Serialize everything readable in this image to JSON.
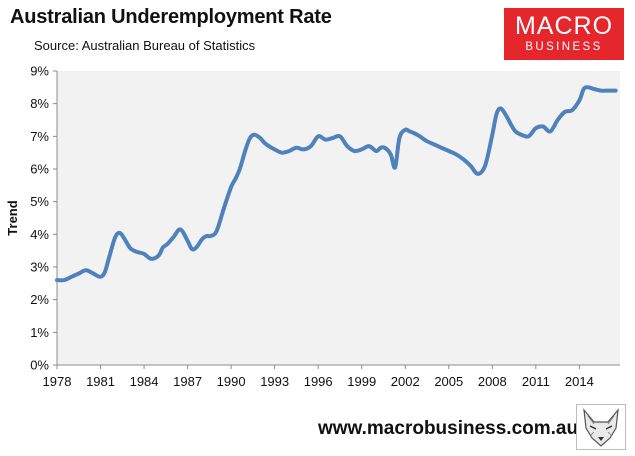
{
  "header": {
    "title": "Australian Underemployment Rate",
    "subtitle": "Source: Australian Bureau of Statistics"
  },
  "logo": {
    "line1": "MACRO",
    "line2": "BUSINESS",
    "color": "#e6262d"
  },
  "footer": {
    "url": "www.macrobusiness.com.au",
    "mascot_icon": "fox-head-icon"
  },
  "chart_data": {
    "type": "line",
    "title": "Australian Underemployment Rate",
    "subtitle": "Source: Australian Bureau of Statistics",
    "xlabel": "",
    "ylabel": "Trend",
    "xlim": [
      1978,
      2016.8
    ],
    "ylim": [
      0,
      9
    ],
    "x_ticks": [
      1978,
      1981,
      1984,
      1987,
      1990,
      1993,
      1996,
      1999,
      2002,
      2005,
      2008,
      2011,
      2014
    ],
    "y_ticks": [
      0,
      1,
      2,
      3,
      4,
      5,
      6,
      7,
      8,
      9
    ],
    "y_tick_labels": [
      "0%",
      "1%",
      "2%",
      "3%",
      "4%",
      "5%",
      "6%",
      "7%",
      "8%",
      "9%"
    ],
    "grid": false,
    "legend": "none",
    "plot_background": "#f2f2f2",
    "line_color": "#4f81bd",
    "series": [
      {
        "x": [
          1978.0,
          1978.5,
          1979.0,
          1979.5,
          1980.0,
          1980.5,
          1981.0,
          1981.3,
          1981.6,
          1982.0,
          1982.3,
          1982.6,
          1983.0,
          1983.3,
          1983.6,
          1984.0,
          1984.5,
          1985.0,
          1985.3,
          1985.6,
          1986.0,
          1986.5,
          1987.0,
          1987.3,
          1987.6,
          1988.0,
          1988.3,
          1988.6,
          1989.0,
          1989.5,
          1990.0,
          1990.3,
          1990.6,
          1991.0,
          1991.3,
          1991.6,
          1992.0,
          1992.3,
          1992.6,
          1993.0,
          1993.5,
          1994.0,
          1994.5,
          1995.0,
          1995.5,
          1996.0,
          1996.5,
          1997.0,
          1997.5,
          1998.0,
          1998.5,
          1999.0,
          1999.5,
          2000.0,
          2000.3,
          2000.6,
          2001.0,
          2001.3,
          2001.6,
          2002.0,
          2002.3,
          2002.6,
          2003.0,
          2003.5,
          2004.0,
          2004.5,
          2005.0,
          2005.5,
          2006.0,
          2006.5,
          2007.0,
          2007.5,
          2008.0,
          2008.3,
          2008.6,
          2009.0,
          2009.3,
          2009.6,
          2010.0,
          2010.5,
          2011.0,
          2011.5,
          2012.0,
          2012.5,
          2013.0,
          2013.5,
          2014.0,
          2014.3,
          2014.6,
          2015.0,
          2015.5,
          2016.0,
          2016.5
        ],
        "values": [
          2.6,
          2.6,
          2.7,
          2.8,
          2.9,
          2.8,
          2.7,
          2.85,
          3.3,
          3.9,
          4.05,
          3.9,
          3.6,
          3.5,
          3.45,
          3.4,
          3.25,
          3.35,
          3.6,
          3.7,
          3.9,
          4.15,
          3.8,
          3.55,
          3.6,
          3.85,
          3.95,
          3.95,
          4.1,
          4.8,
          5.45,
          5.7,
          6.0,
          6.6,
          6.95,
          7.05,
          6.95,
          6.8,
          6.7,
          6.6,
          6.5,
          6.55,
          6.65,
          6.6,
          6.7,
          7.0,
          6.9,
          6.95,
          7.0,
          6.7,
          6.55,
          6.6,
          6.7,
          6.55,
          6.65,
          6.65,
          6.45,
          6.05,
          6.95,
          7.2,
          7.15,
          7.1,
          7.0,
          6.85,
          6.75,
          6.65,
          6.55,
          6.45,
          6.3,
          6.1,
          5.85,
          6.1,
          7.05,
          7.7,
          7.85,
          7.6,
          7.35,
          7.15,
          7.05,
          7.0,
          7.25,
          7.3,
          7.15,
          7.5,
          7.75,
          7.8,
          8.1,
          8.45,
          8.5,
          8.45,
          8.4,
          8.4,
          8.4
        ]
      }
    ]
  }
}
